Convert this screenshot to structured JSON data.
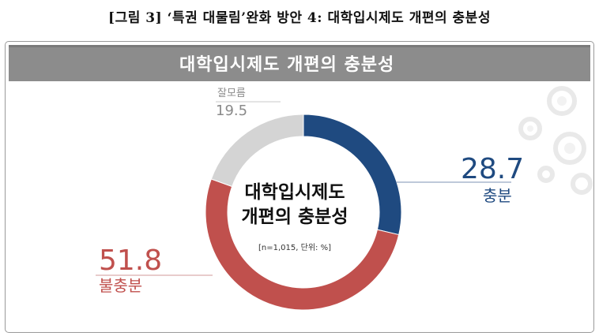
{
  "caption": "[그림 3] ‘특권 대물림’완화 방안 4: 대학입시제도 개편의 충분성",
  "banner_title": "대학입시제도 개편의 충분성",
  "center": {
    "title_line1": "대학입시제도",
    "title_line2": "개편의 충분성",
    "note": "[n=1,015, 단위: %]"
  },
  "chart_data": {
    "type": "pie",
    "donut": true,
    "title": "대학입시제도 개편의 충분성",
    "unit": "%",
    "n": "1,015",
    "slices": [
      {
        "label": "충분",
        "value": 28.7,
        "color": "#1f4a80"
      },
      {
        "label": "불충분",
        "value": 51.8,
        "color": "#c0504d"
      },
      {
        "label": "잘모름",
        "value": 19.5,
        "color": "#d4d4d4"
      }
    ]
  },
  "colors": {
    "banner": "#8c8c8c",
    "sufficient": "#1f4a80",
    "insufficient": "#c0504d",
    "unknown": "#8a8a8a"
  }
}
